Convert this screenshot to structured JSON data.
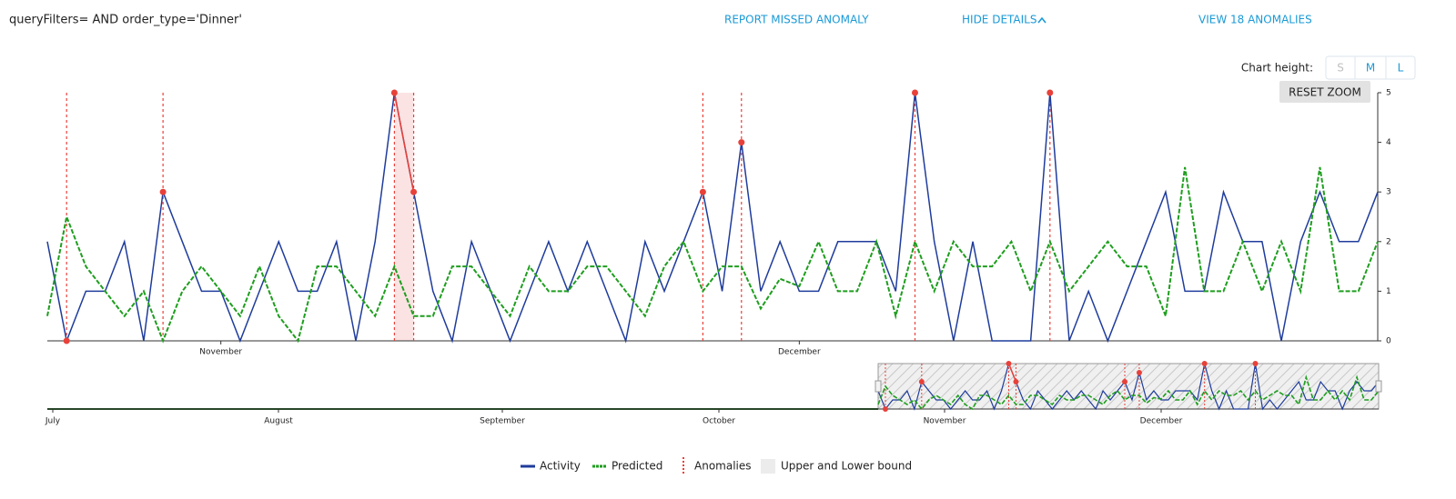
{
  "header": {
    "query": "queryFilters= AND order_type='Dinner'",
    "actions": [
      "REPORT MISSED ANOMALY",
      "HIDE DETAILS",
      "VIEW 18 ANOMALIES"
    ]
  },
  "chart_height": {
    "label": "Chart height:",
    "options": [
      "S",
      "M",
      "L"
    ]
  },
  "reset_zoom": "RESET ZOOM",
  "chart_data": {
    "type": "line",
    "categories": [
      null,
      null,
      null,
      null,
      null,
      null,
      null,
      null,
      null,
      "November",
      null,
      null,
      null,
      null,
      null,
      null,
      null,
      null,
      null,
      null,
      null,
      null,
      null,
      null,
      null,
      null,
      null,
      null,
      null,
      null,
      null,
      null,
      null,
      null,
      null,
      null,
      null,
      null,
      null,
      "December",
      null,
      null,
      null,
      null,
      null,
      null,
      null,
      null,
      null,
      null,
      null,
      null,
      null,
      null,
      null,
      null,
      null,
      null,
      null,
      null,
      null,
      null,
      null,
      null,
      null,
      null,
      null,
      null,
      null,
      null
    ],
    "series": [
      {
        "name": "Activity",
        "color": "#1f3c9c",
        "values": [
          2,
          0,
          1,
          1,
          2,
          0,
          3,
          2,
          1,
          1,
          0,
          1,
          2,
          1,
          1,
          2,
          0,
          2,
          5,
          3,
          1,
          0,
          2,
          1,
          0,
          1,
          2,
          1,
          2,
          1,
          0,
          2,
          1,
          2,
          3,
          1,
          4,
          1,
          2,
          1,
          1,
          2,
          2,
          2,
          1,
          5,
          2,
          0,
          2,
          0,
          0,
          0,
          5,
          0,
          1,
          0,
          1,
          2,
          3,
          1,
          1,
          3,
          2,
          2,
          0,
          2,
          3,
          2,
          2,
          3
        ]
      },
      {
        "name": "Predicted",
        "color": "#1e9e1e",
        "values": [
          0.5,
          2.5,
          1.5,
          1,
          0.5,
          1,
          0,
          1,
          1.5,
          1,
          0.5,
          1.5,
          0.5,
          0,
          1.5,
          1.5,
          1,
          0.5,
          1.5,
          0.5,
          0.5,
          1.5,
          1.5,
          1,
          0.5,
          1.5,
          1,
          1,
          1.5,
          1.5,
          1,
          0.5,
          1.5,
          2,
          1,
          1.5,
          1.5,
          0.65,
          1.25,
          1.1,
          2,
          1,
          1,
          2,
          0.5,
          2,
          1,
          2,
          1.5,
          1.5,
          2,
          1,
          2,
          1,
          1.5,
          2,
          1.5,
          1.5,
          0.5,
          3.5,
          1,
          1,
          2,
          1,
          2,
          1,
          3.5,
          1,
          1,
          2
        ]
      },
      {
        "name": "Anomalies",
        "color": "#e8413a",
        "values": [
          null,
          0,
          null,
          null,
          null,
          null,
          3,
          null,
          null,
          null,
          null,
          null,
          null,
          null,
          null,
          null,
          null,
          null,
          5,
          3,
          null,
          null,
          null,
          null,
          null,
          null,
          null,
          null,
          null,
          null,
          null,
          null,
          null,
          null,
          3,
          null,
          4,
          null,
          null,
          null,
          null,
          null,
          null,
          null,
          null,
          5,
          null,
          null,
          null,
          null,
          null,
          null,
          5,
          null,
          null,
          null,
          null,
          null,
          null,
          null,
          null,
          null,
          null,
          null,
          null,
          null,
          null,
          null,
          null,
          null
        ]
      }
    ],
    "bound_name": "Upper and Lower bound",
    "ylim": [
      0,
      5
    ],
    "yticks": [
      0,
      1,
      2,
      3,
      4,
      5
    ],
    "navigator_labels": [
      "July",
      "August",
      "September",
      "October",
      "November",
      "December"
    ]
  }
}
